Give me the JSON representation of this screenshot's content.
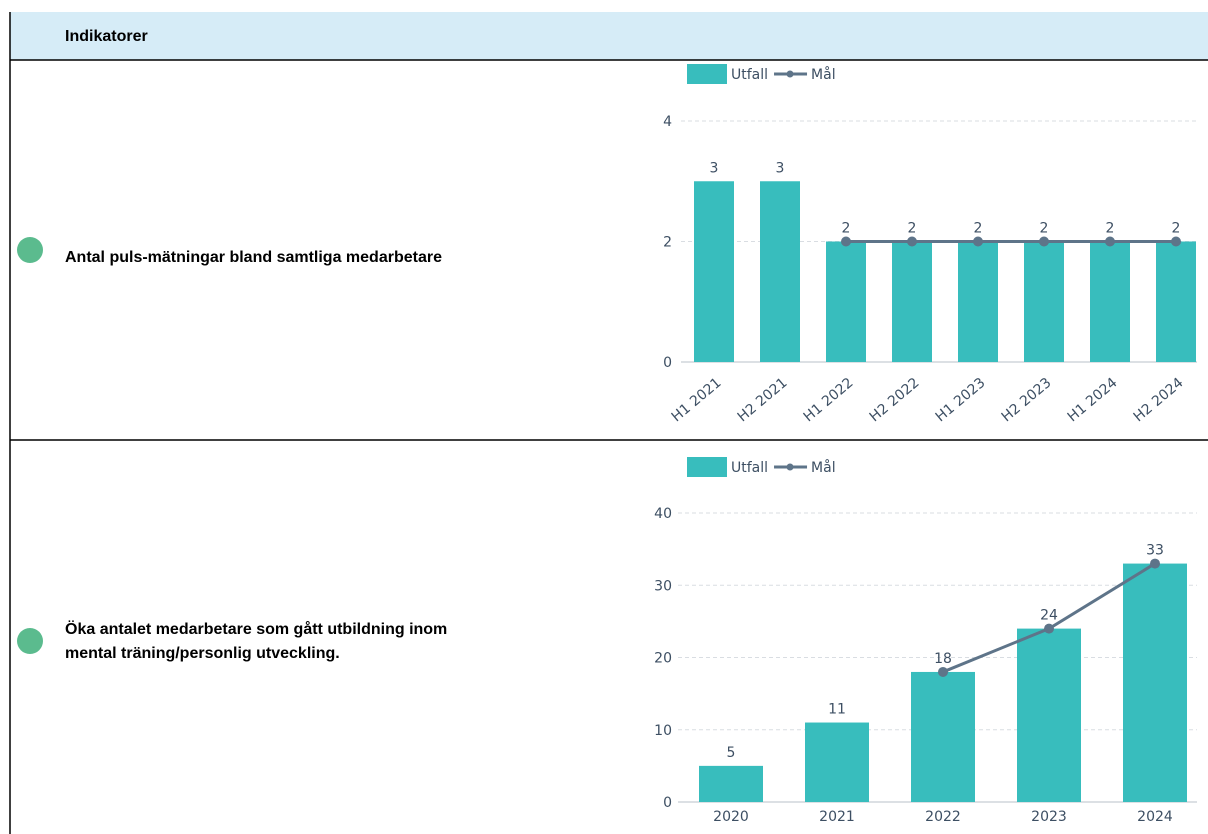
{
  "header": {
    "title": "Indikatorer"
  },
  "rows": [
    {
      "label": [
        "Antal puls-mätningar bland samtliga medarbetare"
      ]
    },
    {
      "label": [
        "Öka antalet medarbetare som gått utbildning inom",
        "mental träning/personlig utveckling."
      ]
    }
  ],
  "chart_data": [
    {
      "type": "bar",
      "categories": [
        "H1 2021",
        "H2 2021",
        "H1 2022",
        "H2 2022",
        "H1 2023",
        "H2 2023",
        "H1 2024",
        "H2 2024"
      ],
      "series": [
        {
          "name": "Utfall",
          "type": "bar",
          "color": "#38bdbd",
          "values": [
            3,
            3,
            2,
            2,
            2,
            2,
            2,
            2
          ]
        },
        {
          "name": "Mål",
          "type": "line",
          "color": "#5e7489",
          "values": [
            null,
            null,
            2,
            2,
            2,
            2,
            2,
            2
          ]
        }
      ],
      "ylim": [
        0,
        4
      ],
      "yticks": [
        0,
        2,
        4
      ],
      "grid": true,
      "legend": "top"
    },
    {
      "type": "bar",
      "categories": [
        "2020",
        "2021",
        "2022",
        "2023",
        "2024"
      ],
      "series": [
        {
          "name": "Utfall",
          "type": "bar",
          "color": "#38bdbd",
          "values": [
            5,
            11,
            18,
            24,
            33
          ]
        },
        {
          "name": "Mål",
          "type": "line",
          "color": "#5e7489",
          "values": [
            null,
            null,
            18,
            24,
            33
          ]
        }
      ],
      "ylim": [
        0,
        40
      ],
      "yticks": [
        0,
        10,
        20,
        30,
        40
      ],
      "grid": true,
      "legend": "top"
    }
  ]
}
